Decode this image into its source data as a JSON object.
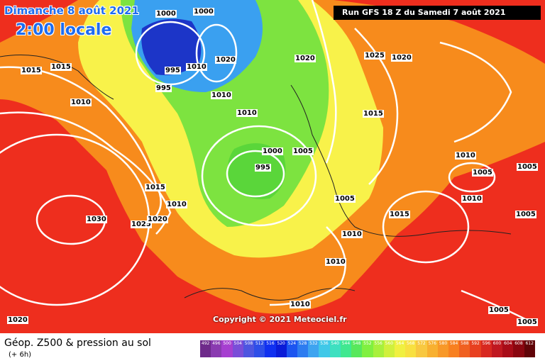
{
  "map": {
    "date_label": "Dimanche 8 août 2021",
    "time_label": "2:00 locale",
    "run_label": "Run GFS 18 Z du Samedi 7 août 2021",
    "copyright": "Copyright © 2021 Meteociel.fr",
    "isobar_labels": [
      "1000",
      "1000",
      "995",
      "1010",
      "1020",
      "995",
      "1010",
      "1010",
      "1015",
      "1015",
      "1010",
      "1000",
      "1005",
      "995",
      "1015",
      "1010",
      "1030",
      "1025",
      "1020",
      "1005",
      "1010",
      "1015",
      "1010",
      "1010",
      "1020",
      "1025",
      "1020",
      "1015",
      "1010",
      "1005",
      "1005",
      "1010",
      "1005",
      "1005",
      "1020",
      "1005"
    ],
    "colors": {
      "low_core": "#1c35c8",
      "low": "#3aa0f0",
      "mid": "#7de340",
      "high": "#f8f24a",
      "warm": "#f78b1c",
      "hot": "#ee2e1e"
    }
  },
  "legend": {
    "title": "Géop. Z500 & pression au sol",
    "subtitle": "(+ 6h)",
    "scale": [
      "492",
      "496",
      "500",
      "504",
      "508",
      "512",
      "516",
      "520",
      "524",
      "528",
      "532",
      "536",
      "540",
      "544",
      "548",
      "552",
      "556",
      "560",
      "564",
      "568",
      "572",
      "576",
      "580",
      "584",
      "588",
      "592",
      "596",
      "600",
      "604",
      "608",
      "612"
    ],
    "scale_colors": [
      "#6e2a8a",
      "#8a3bb0",
      "#a63fd0",
      "#7a4dd8",
      "#4e55e0",
      "#2e4ee8",
      "#1030f0",
      "#0a1cd8",
      "#1c55f0",
      "#2d7cf0",
      "#3ea4f0",
      "#40c8e8",
      "#3ee0c0",
      "#40e890",
      "#58e85c",
      "#80f040",
      "#a8f03c",
      "#d0f03c",
      "#f0f040",
      "#f8e040",
      "#f8c840",
      "#f8b030",
      "#f89828",
      "#f88020",
      "#f06020",
      "#e84020",
      "#d82820",
      "#c01820",
      "#a80c18",
      "#8a0610",
      "#600408"
    ]
  }
}
